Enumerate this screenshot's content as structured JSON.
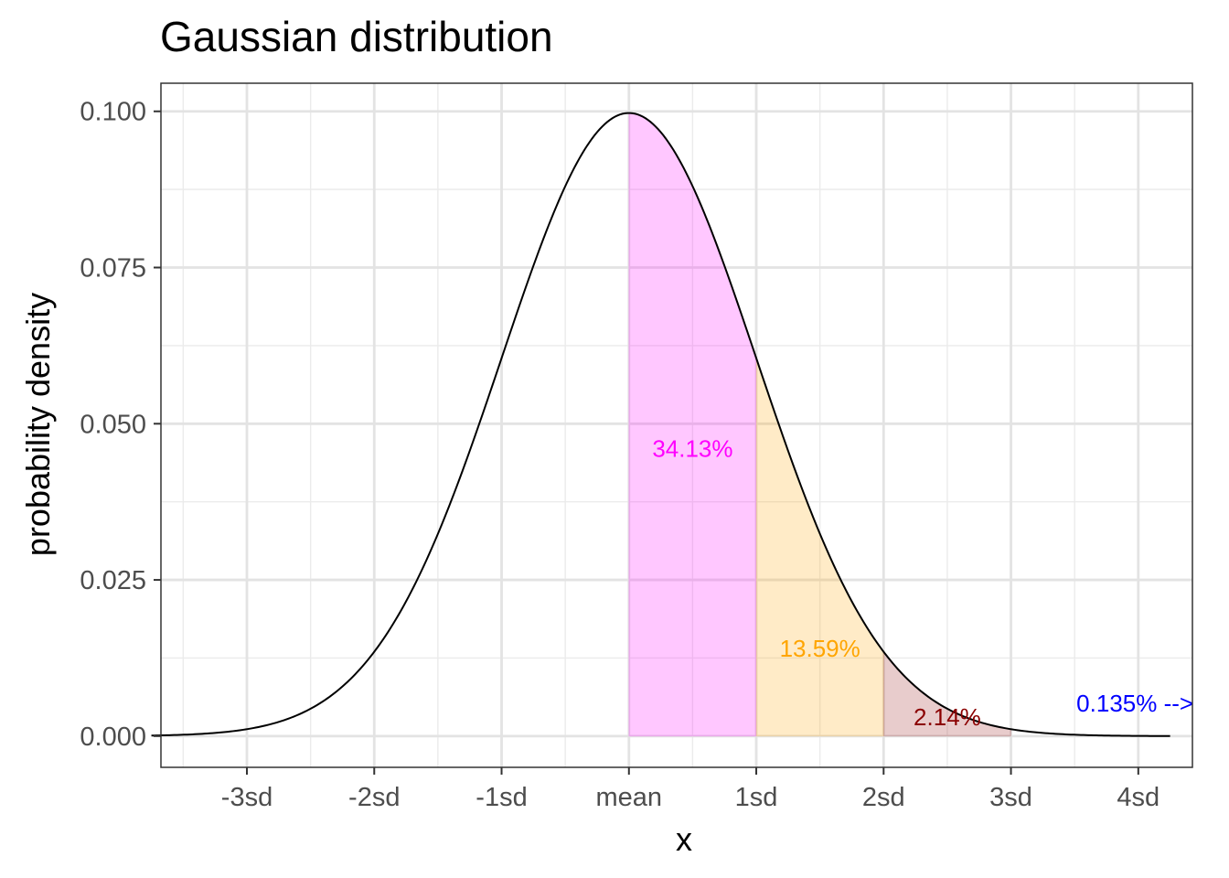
{
  "chart_data": {
    "type": "area",
    "title": "Gaussian distribution",
    "xlabel": "x",
    "ylabel": "probability density",
    "sd": 4,
    "mean": 0,
    "xlim": [
      -14.7,
      17.7
    ],
    "ylim": [
      -0.005,
      0.1045
    ],
    "x_ticks": [
      {
        "value": -12,
        "label": "-3sd"
      },
      {
        "value": -8,
        "label": "-2sd"
      },
      {
        "value": -4,
        "label": "-1sd"
      },
      {
        "value": 0,
        "label": "mean"
      },
      {
        "value": 4,
        "label": "1sd"
      },
      {
        "value": 8,
        "label": "2sd"
      },
      {
        "value": 12,
        "label": "3sd"
      },
      {
        "value": 16,
        "label": "4sd"
      }
    ],
    "y_ticks": [
      {
        "value": 0.0,
        "label": "0.000"
      },
      {
        "value": 0.025,
        "label": "0.025"
      },
      {
        "value": 0.05,
        "label": "0.050"
      },
      {
        "value": 0.075,
        "label": "0.075"
      },
      {
        "value": 0.1,
        "label": "0.100"
      }
    ],
    "curve": {
      "x_range": [
        -15,
        17
      ],
      "color": "#000000"
    },
    "regions": [
      {
        "from": 0,
        "to": 4,
        "fill": "#ff00ff",
        "opacity": 0.22,
        "label": "34.13%",
        "label_color": "#ff00ff",
        "label_x": 2,
        "label_y": 0.0447
      },
      {
        "from": 4,
        "to": 8,
        "fill": "#ffa500",
        "opacity": 0.22,
        "label": "13.59%",
        "label_color": "#ffa500",
        "label_x": 6,
        "label_y": 0.0127
      },
      {
        "from": 8,
        "to": 12,
        "fill": "#8b0000",
        "opacity": 0.2,
        "label": "2.14%",
        "label_color": "#8b0000",
        "label_x": 10,
        "label_y": 0.0017
      }
    ],
    "tail_annotation": {
      "text": "0.135% -->",
      "color": "#0000ff",
      "x": 14,
      "y": 0.0039
    },
    "grid": true,
    "legend": "none"
  }
}
